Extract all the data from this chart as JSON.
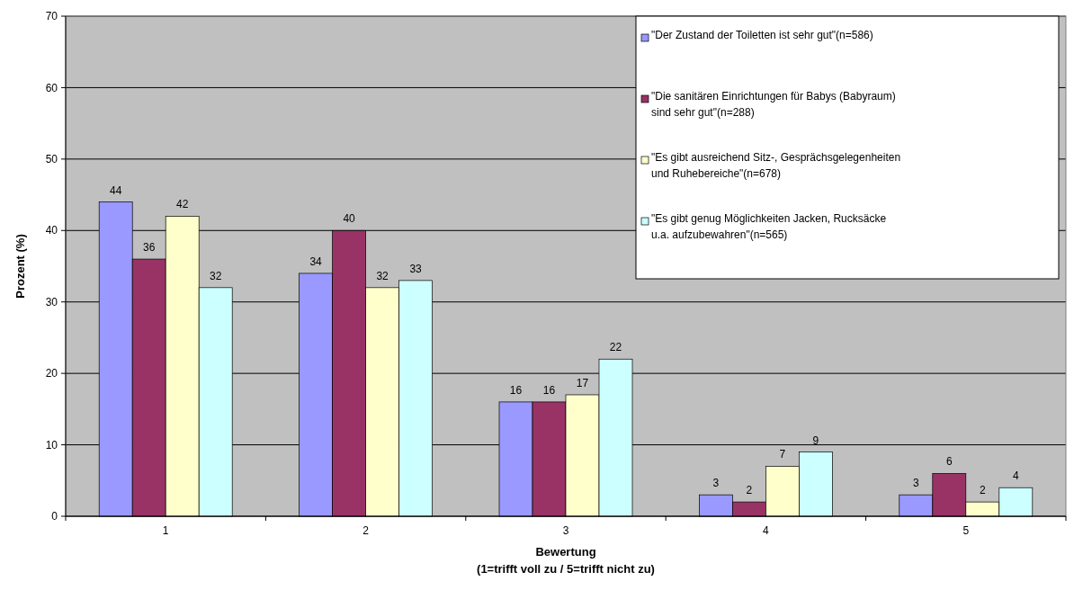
{
  "chart_data": {
    "type": "bar",
    "xlabel": "Bewertung\n(1=trifft voll zu / 5=trifft nicht zu)",
    "ylabel": "Prozent (%)",
    "categories": [
      "1",
      "2",
      "3",
      "4",
      "5"
    ],
    "series": [
      {
        "name": "\"Der Zustand der Toiletten ist sehr gut\"(n=586)",
        "color": "#9999ff",
        "values": [
          44,
          34,
          16,
          3,
          3
        ]
      },
      {
        "name": "\"Die sanitären Einrichtungen für Babys (Babyraum) sind sehr gut\"(n=288)",
        "color": "#993366",
        "values": [
          36,
          40,
          16,
          2,
          6
        ]
      },
      {
        "name": "\"Es gibt ausreichend Sitz-, Gesprächsgelegenheiten und Ruhebereiche\"(n=678)",
        "color": "#ffffcc",
        "values": [
          42,
          32,
          17,
          7,
          2
        ]
      },
      {
        "name": "\"Es gibt genug Möglichkeiten Jacken, Rucksäcke u.a. aufzubewahren\"(n=565)",
        "color": "#ccffff",
        "values": [
          32,
          33,
          22,
          9,
          4
        ]
      }
    ],
    "ylim": [
      0,
      70
    ],
    "yticks": [
      0,
      10,
      20,
      30,
      40,
      50,
      60,
      70
    ],
    "grid": "y",
    "legend": "top right",
    "data_labels": true
  }
}
